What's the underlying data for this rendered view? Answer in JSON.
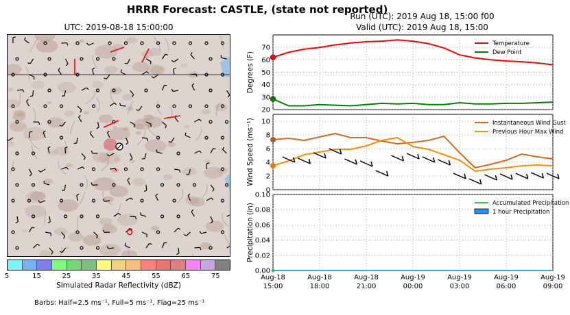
{
  "figure": {
    "title": "HRRR Forecast: CASTLE, (state not reported)",
    "map_title": "UTC: 2019-08-18 15:00:00",
    "run_line": "Run (UTC): 2019 Aug 18, 15:00 f00",
    "valid_line": "Valid (UTC): 2019 Aug 18, 15:00",
    "colorbar_label": "Simulated Radar Reflectivity (dBZ)",
    "barb_note": "Barbs: Half=2.5 ms⁻¹, Full=5 ms⁻¹, Flag=25 ms⁻¹"
  },
  "colorbar": {
    "ticks": [
      "5",
      "15",
      "25",
      "35",
      "45",
      "55",
      "65",
      "75"
    ],
    "colors": [
      "#7ff3fa",
      "#74b4f4",
      "#7f7ff0",
      "#7ffb7f",
      "#74d874",
      "#7fc07f",
      "#fafa7f",
      "#f2d27f",
      "#f8c07f",
      "#fa7f7f",
      "#e87474",
      "#e07f7f",
      "#fa7ffa",
      "#c8a6e0",
      "#808080"
    ]
  },
  "chart_data": [
    {
      "type": "line",
      "ylabel": "Degrees (F)",
      "ylim": [
        20,
        80
      ],
      "yticks": [
        "20",
        "30",
        "40",
        "50",
        "60",
        "70"
      ],
      "legend": "top-right",
      "grid": true,
      "x": [
        "Aug-18 15:00",
        "Aug-18 16:00",
        "Aug-18 17:00",
        "Aug-18 18:00",
        "Aug-18 19:00",
        "Aug-18 20:00",
        "Aug-18 21:00",
        "Aug-18 22:00",
        "Aug-18 23:00",
        "Aug-19 00:00",
        "Aug-19 01:00",
        "Aug-19 02:00",
        "Aug-19 03:00",
        "Aug-19 04:00",
        "Aug-19 05:00",
        "Aug-19 06:00",
        "Aug-19 07:00",
        "Aug-19 08:00",
        "Aug-19 09:00"
      ],
      "series": [
        {
          "name": "Temperature",
          "color": "#ff0000",
          "values": [
            62,
            66,
            68.5,
            70,
            72,
            73.5,
            74.5,
            75,
            76,
            75,
            73,
            69.5,
            64,
            61.5,
            60,
            59,
            58.5,
            57.5,
            56
          ]
        },
        {
          "name": "Dew Point",
          "color": "#008000",
          "values": [
            28.5,
            23,
            23,
            24,
            23.5,
            23,
            24,
            25,
            24.5,
            25,
            24,
            24,
            25.5,
            24.5,
            24.5,
            25,
            25,
            25.5,
            26
          ]
        }
      ]
    },
    {
      "type": "line",
      "ylabel": "Wind Speed (ms⁻¹)",
      "ylim": [
        0,
        11
      ],
      "yticks": [
        "0",
        "2",
        "4",
        "6",
        "8",
        "10"
      ],
      "legend": "top-right",
      "grid": true,
      "series": [
        {
          "name": "Instantaneous Wind Gust",
          "color": "#d2691e",
          "values": [
            7.3,
            7.5,
            7.2,
            7.7,
            8.2,
            7.6,
            7.6,
            7.1,
            6.7,
            6.9,
            7.2,
            7.8,
            5.4,
            3.2,
            3.7,
            4.3,
            5.2,
            4.8,
            4.5
          ]
        },
        {
          "name": "Previous Hour Max Wind",
          "color": "#ff8c00",
          "values": [
            3.5,
            4.2,
            5.1,
            5.5,
            5.9,
            5.9,
            6.4,
            7.2,
            7.6,
            6.3,
            5.9,
            5.1,
            4.3,
            2.7,
            3.0,
            3.2,
            3.5,
            3.6,
            3.5
          ]
        }
      ]
    },
    {
      "type": "area",
      "ylabel": "Precipitation (in)",
      "ylim": [
        0,
        0.1
      ],
      "yticks": [
        "0.00",
        "0.02",
        "0.04",
        "0.06",
        "0.08",
        "0.10"
      ],
      "legend": "top-right",
      "grid": true,
      "xticks": [
        [
          "Aug-18",
          "15:00"
        ],
        [
          "Aug-18",
          "18:00"
        ],
        [
          "Aug-18",
          "21:00"
        ],
        [
          "Aug-19",
          "00:00"
        ],
        [
          "Aug-19",
          "03:00"
        ],
        [
          "Aug-19",
          "06:00"
        ],
        [
          "Aug-19",
          "09:00"
        ]
      ],
      "series": [
        {
          "name": "Accumulated Precipitation",
          "color": "#32cd32",
          "values": [
            0,
            0,
            0,
            0,
            0,
            0,
            0,
            0,
            0,
            0,
            0,
            0,
            0,
            0,
            0,
            0,
            0,
            0,
            0
          ]
        },
        {
          "name": "1 hour Precipitation",
          "color": "#1e90ff",
          "values": [
            0,
            0,
            0,
            0,
            0,
            0,
            0,
            0,
            0,
            0,
            0,
            0,
            0,
            0,
            0,
            0,
            0,
            0,
            0
          ]
        }
      ]
    }
  ]
}
